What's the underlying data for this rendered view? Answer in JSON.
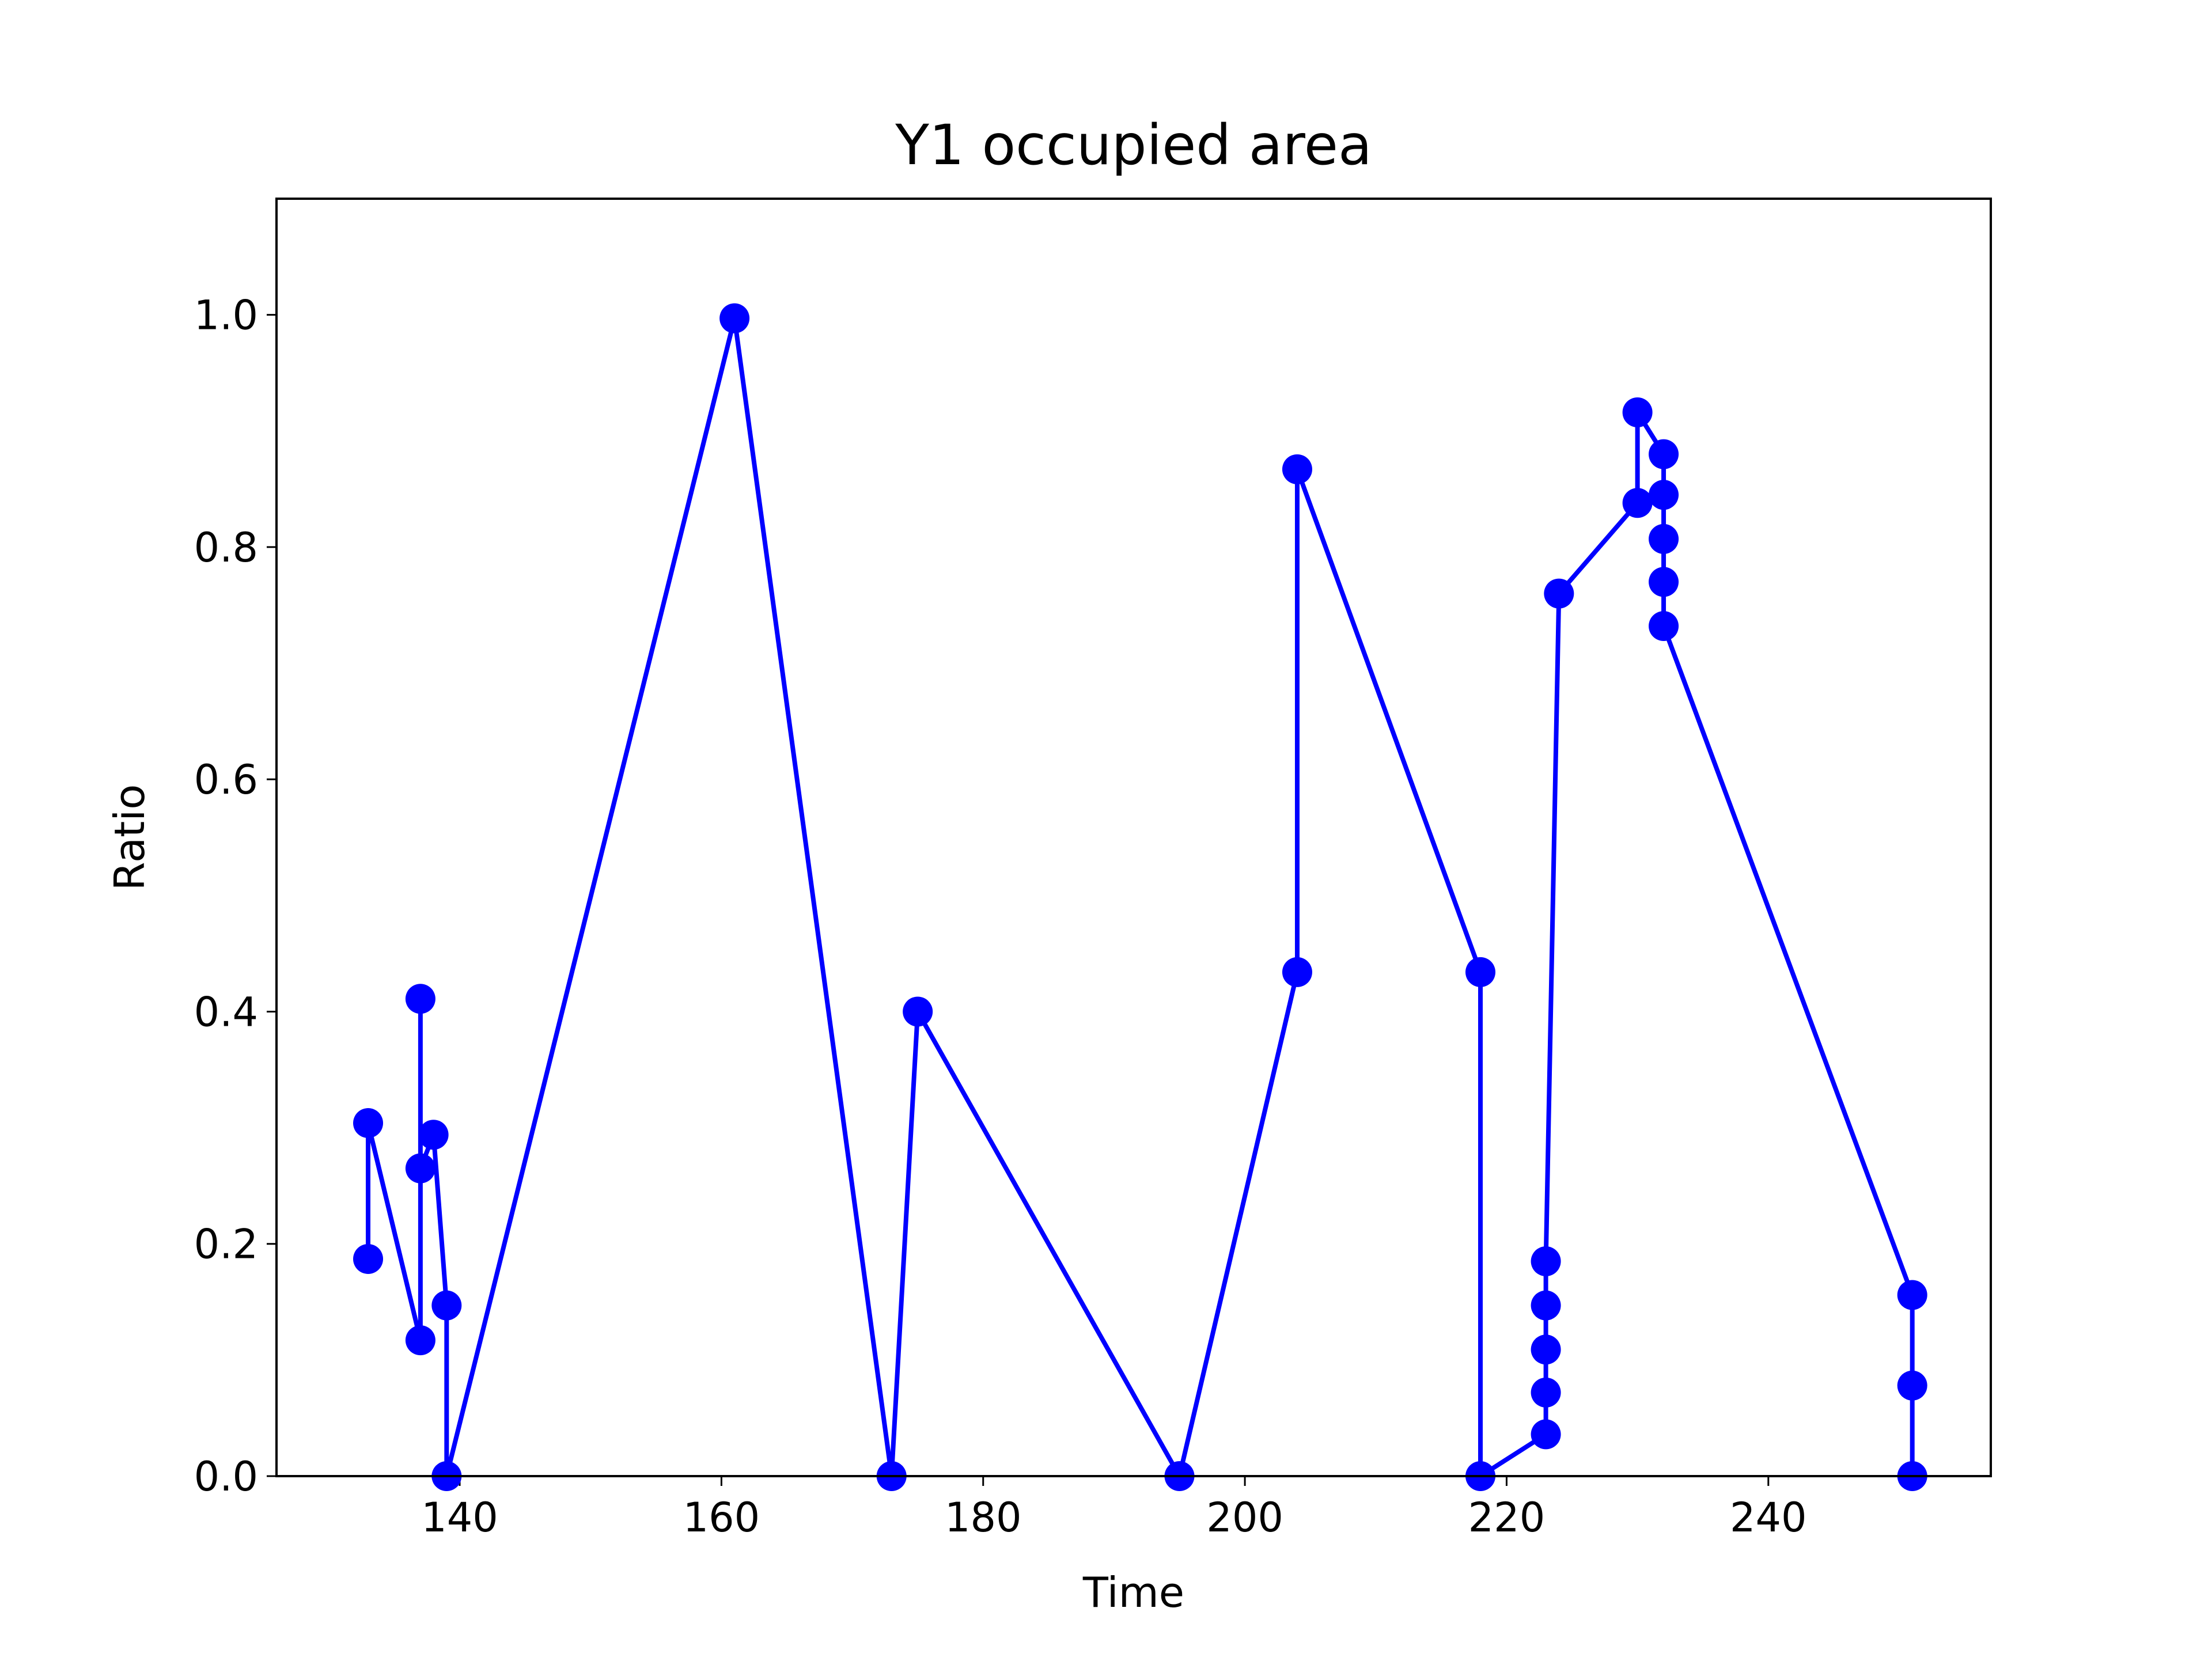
{
  "chart_data": {
    "type": "line",
    "title": "Y1 occupied area",
    "xlabel": "Time",
    "ylabel": "Ratio",
    "xlim": [
      126,
      257
    ],
    "ylim": [
      0.0,
      1.1
    ],
    "xticks": [
      140,
      160,
      180,
      200,
      220,
      240
    ],
    "yticks": [
      0.0,
      0.2,
      0.4,
      0.6,
      0.8,
      1.0
    ],
    "xtick_labels": [
      "140",
      "160",
      "180",
      "200",
      "220",
      "240"
    ],
    "ytick_labels": [
      "0.0",
      "0.2",
      "0.4",
      "0.6",
      "0.8",
      "1.0"
    ],
    "grid": false,
    "legend": "none",
    "series": [
      {
        "color": "#0000ff",
        "marker": "circle",
        "points": [
          {
            "x": 133,
            "y": 0.187
          },
          {
            "x": 133,
            "y": 0.304
          },
          {
            "x": 137,
            "y": 0.117
          },
          {
            "x": 137,
            "y": 0.411
          },
          {
            "x": 137,
            "y": 0.265
          },
          {
            "x": 138,
            "y": 0.294
          },
          {
            "x": 139,
            "y": 0.147
          },
          {
            "x": 139,
            "y": 0.0
          },
          {
            "x": 161,
            "y": 0.997
          },
          {
            "x": 173,
            "y": 0.0
          },
          {
            "x": 175,
            "y": 0.4
          },
          {
            "x": 195,
            "y": 0.0
          },
          {
            "x": 204,
            "y": 0.434
          },
          {
            "x": 204,
            "y": 0.867
          },
          {
            "x": 218,
            "y": 0.434
          },
          {
            "x": 218,
            "y": 0.0
          },
          {
            "x": 223,
            "y": 0.036
          },
          {
            "x": 223,
            "y": 0.072
          },
          {
            "x": 223,
            "y": 0.109
          },
          {
            "x": 223,
            "y": 0.147
          },
          {
            "x": 223,
            "y": 0.185
          },
          {
            "x": 224,
            "y": 0.76
          },
          {
            "x": 230,
            "y": 0.838
          },
          {
            "x": 230,
            "y": 0.916
          },
          {
            "x": 232,
            "y": 0.88
          },
          {
            "x": 232,
            "y": 0.845
          },
          {
            "x": 232,
            "y": 0.807
          },
          {
            "x": 232,
            "y": 0.77
          },
          {
            "x": 232,
            "y": 0.732
          },
          {
            "x": 251,
            "y": 0.156
          },
          {
            "x": 251,
            "y": 0.078
          },
          {
            "x": 251,
            "y": 0.0
          }
        ]
      }
    ]
  }
}
